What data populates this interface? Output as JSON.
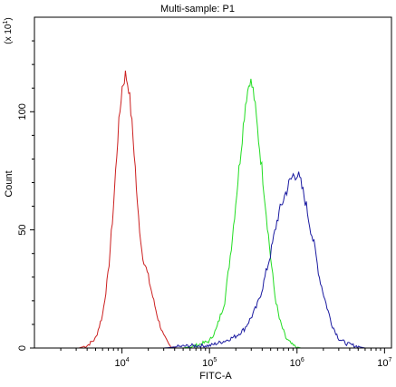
{
  "chart_data": {
    "type": "line",
    "title": "Multi-sample: P1",
    "xlabel": "FITC-A",
    "ylabel": "Count",
    "ylabel_multiplier": "(x 10^1)",
    "x_scale": "log",
    "xlim": [
      1000,
      12000000
    ],
    "ylim": [
      0,
      140
    ],
    "x_ticks": [
      {
        "value": 10000,
        "base": "10",
        "exp": "4"
      },
      {
        "value": 100000,
        "base": "10",
        "exp": "5"
      },
      {
        "value": 1000000,
        "base": "10",
        "exp": "6"
      },
      {
        "value": 10000000,
        "base": "10",
        "exp": "7"
      }
    ],
    "y_ticks": [
      0,
      50,
      100
    ],
    "grid": false,
    "series": [
      {
        "color": "#cc2020",
        "x": [
          3200,
          4000,
          5000,
          6000,
          7000,
          8000,
          9000,
          10000,
          11000,
          12000,
          13000,
          14000,
          15000,
          17000,
          20000,
          23000,
          26000,
          30000,
          35000,
          42000,
          50000
        ],
        "y": [
          0,
          1,
          4,
          14,
          32,
          60,
          90,
          110,
          116,
          110,
          95,
          80,
          60,
          40,
          30,
          20,
          12,
          5,
          1,
          0,
          0
        ]
      },
      {
        "color": "#22dd22",
        "x": [
          30000,
          50000,
          70000,
          100000,
          120000,
          150000,
          180000,
          200000,
          230000,
          260000,
          290000,
          320000,
          360000,
          400000,
          450000,
          500000,
          560000,
          630000,
          750000,
          900000,
          1100000,
          1400000
        ],
        "y": [
          0,
          0,
          1,
          3,
          8,
          20,
          45,
          62,
          85,
          105,
          114,
          108,
          90,
          75,
          55,
          38,
          22,
          12,
          4,
          1,
          0,
          0
        ]
      },
      {
        "color": "#1a1aa0",
        "x": [
          30000,
          60000,
          100000,
          150000,
          200000,
          250000,
          300000,
          350000,
          400000,
          450000,
          500000,
          550000,
          600000,
          700000,
          800000,
          900000,
          1000000,
          1100000,
          1250000,
          1400000,
          1600000,
          1800000,
          2100000,
          2500000,
          3000000,
          3600000,
          4500000,
          6000000
        ],
        "y": [
          0,
          1,
          1,
          3,
          5,
          8,
          13,
          18,
          25,
          33,
          40,
          48,
          55,
          63,
          69,
          73,
          74,
          70,
          62,
          52,
          42,
          30,
          20,
          10,
          4,
          2,
          1,
          0
        ]
      }
    ]
  }
}
